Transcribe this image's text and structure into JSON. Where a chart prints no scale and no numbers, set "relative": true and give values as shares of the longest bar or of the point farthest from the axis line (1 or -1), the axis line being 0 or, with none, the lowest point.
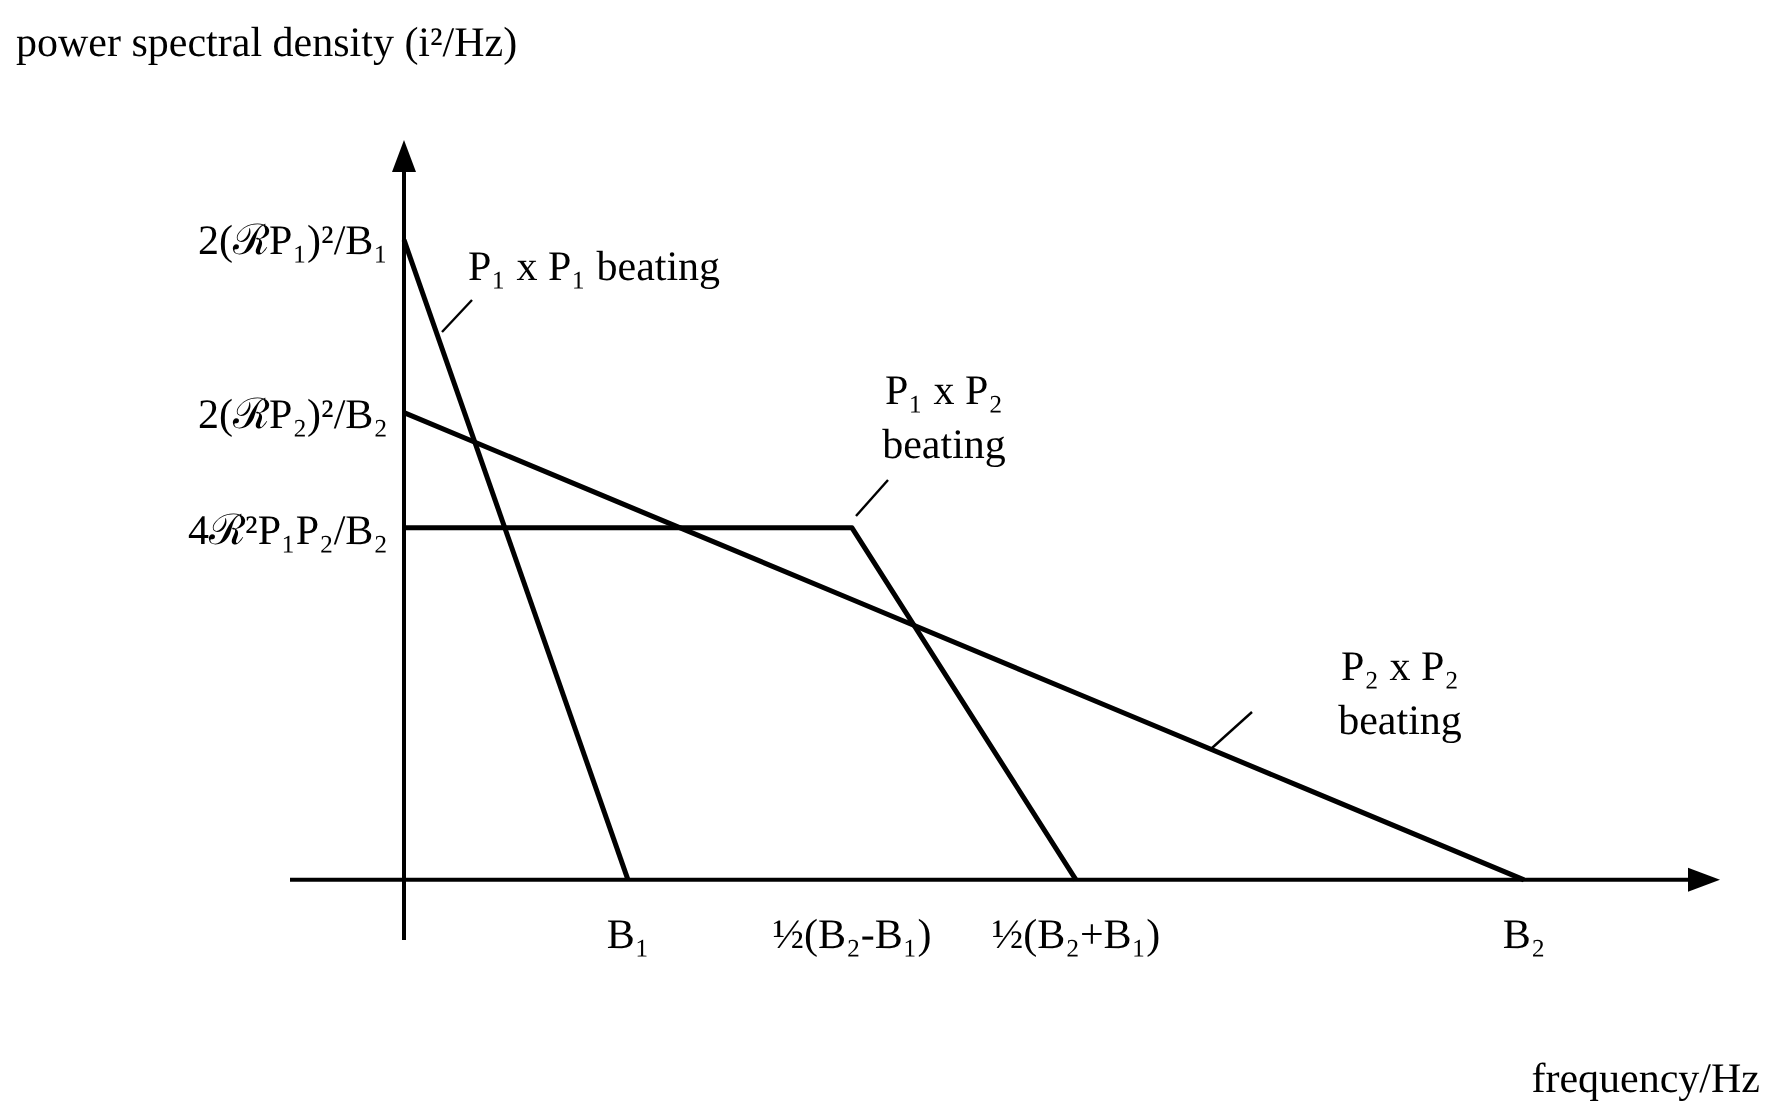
{
  "chart_data": {
    "type": "line",
    "relative": true,
    "xlabel": "frequency/Hz",
    "ylabel": "power spectral density (i²/Hz)",
    "categories": [
      null,
      "B₁",
      "½(B₂-B₁)",
      "½(B₂+B₁)",
      null,
      "B₂"
    ],
    "series": [
      {
        "name": "P₁ x P₁ beating",
        "color": "#000000",
        "values": [
          1,
          0,
          null,
          null,
          null,
          null
        ]
      },
      {
        "name": "P₁ x P₂ beating",
        "color": "#000000",
        "values": [
          0.55,
          0.55,
          0.55,
          0,
          null,
          null
        ]
      },
      {
        "name": "P₂ x P₂ beating",
        "color": "#000000",
        "values": [
          0.73,
          0.584,
          0.438,
          0.292,
          0.146,
          0
        ]
      }
    ],
    "annotations": [
      "2(ℛP₁)²/B₁",
      "2(ℛP₂)²/B₂",
      "4ℛ²P₁P₂/B₂"
    ],
    "legend": false
  }
}
